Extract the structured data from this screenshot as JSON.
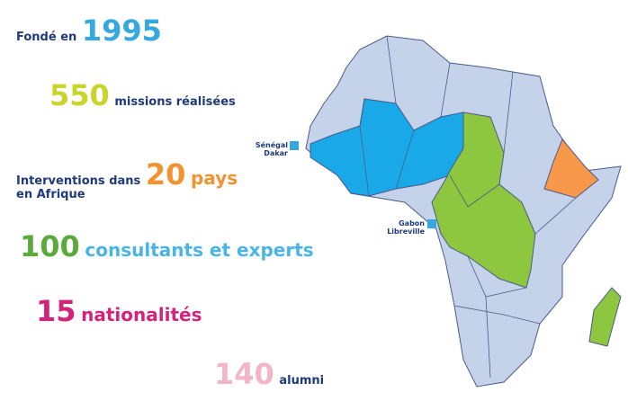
{
  "facts": {
    "founded": {
      "text": "Fondé en",
      "number": 1995
    },
    "missions": {
      "number": 550,
      "text": "missions réalisées"
    },
    "countries": {
      "text": "Interventions dans",
      "number": 20,
      "unit": "pays",
      "text2": "en Afrique"
    },
    "consultants": {
      "number": 100,
      "text": "consultants et experts"
    },
    "nationalities": {
      "number": 15,
      "text": "nationalités"
    },
    "alumni": {
      "number": 140,
      "text": "alumni"
    }
  },
  "offices": [
    {
      "country": "Sénégal",
      "city": "Dakar"
    },
    {
      "country": "Gabon",
      "city": "Libreville"
    }
  ]
}
